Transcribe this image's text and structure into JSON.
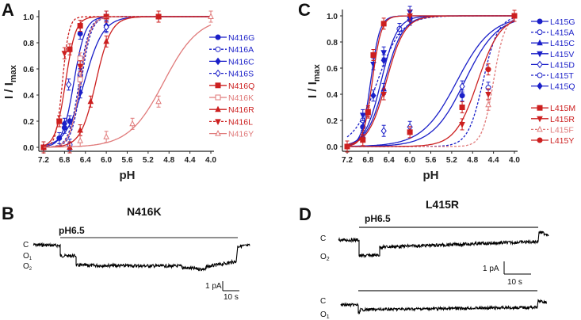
{
  "chart_data": [
    {
      "panel": "A",
      "type": "scatter",
      "xlabel": "pH",
      "ylabel": "I / I_max",
      "ylabel_main": "I / I",
      "ylabel_sub": "max",
      "xlim": [
        7.2,
        4.0
      ],
      "ylim": [
        0.0,
        1.0
      ],
      "xticks": [
        "7.2",
        "6.8",
        "6.4",
        "6.0",
        "5.6",
        "5.2",
        "4.8",
        "4.4",
        "4.0"
      ],
      "yticks": [
        "0.0",
        "0.2",
        "0.4",
        "0.6",
        "0.8",
        "1.0"
      ],
      "legend_position": "right",
      "series": [
        {
          "name": "N416G",
          "color": "#1a1fc8",
          "dash": false,
          "marker": "circle",
          "filled": true,
          "pH50": 6.62,
          "n": 4.0,
          "points": [
            [
              7.2,
              0.0
            ],
            [
              6.9,
              0.07
            ],
            [
              6.8,
              0.15
            ],
            [
              6.7,
              0.2
            ],
            [
              6.5,
              0.87
            ],
            [
              6.0,
              1.0
            ]
          ]
        },
        {
          "name": "N416A",
          "color": "#1a1fc8",
          "dash": true,
          "marker": "circle",
          "filled": false,
          "pH50": 6.52,
          "n": 4.5,
          "points": [
            [
              7.2,
              0.0
            ],
            [
              6.7,
              0.02
            ],
            [
              6.5,
              0.55
            ],
            [
              6.0,
              1.0
            ]
          ]
        },
        {
          "name": "N416C",
          "color": "#1a1fc8",
          "dash": false,
          "marker": "diamond",
          "filled": true,
          "pH50": 6.42,
          "n": 2.4,
          "points": [
            [
              7.2,
              0.0
            ],
            [
              6.8,
              0.18
            ],
            [
              6.7,
              0.2
            ],
            [
              6.5,
              0.42
            ],
            [
              6.0,
              0.93
            ]
          ]
        },
        {
          "name": "N416S",
          "color": "#1a1fc8",
          "dash": true,
          "marker": "diamond",
          "filled": false,
          "pH50": 6.48,
          "n": 4.5,
          "points": [
            [
              7.2,
              0.0
            ],
            [
              6.72,
              0.48
            ],
            [
              6.5,
              0.56
            ],
            [
              6.0,
              0.92
            ]
          ]
        },
        {
          "name": "N416Q",
          "color": "#cc1f1f",
          "dash": false,
          "marker": "square",
          "filled": true,
          "pH50": 6.78,
          "n": 4.5,
          "points": [
            [
              7.2,
              0.0
            ],
            [
              6.9,
              0.2
            ],
            [
              6.7,
              0.75
            ],
            [
              6.5,
              0.93
            ],
            [
              6.0,
              1.0
            ],
            [
              5.0,
              1.0
            ]
          ]
        },
        {
          "name": "N416K",
          "color": "#e07a7a",
          "dash": false,
          "marker": "square",
          "filled": false,
          "pH50": 6.5,
          "n": 4.5,
          "points": [
            [
              6.5,
              0.68
            ],
            [
              6.5,
              0.52
            ]
          ]
        },
        {
          "name": "N416R",
          "color": "#cc1f1f",
          "dash": false,
          "marker": "triangle-up",
          "filled": true,
          "pH50": 6.2,
          "n": 3.0,
          "points": [
            [
              7.2,
              0.0
            ],
            [
              6.7,
              0.0
            ],
            [
              6.5,
              0.13
            ],
            [
              6.3,
              0.35
            ],
            [
              6.0,
              0.81
            ],
            [
              5.0,
              1.0
            ]
          ]
        },
        {
          "name": "N416L",
          "color": "#cc1f1f",
          "dash": true,
          "marker": "triangle-down",
          "filled": true,
          "pH50": 6.84,
          "n": 7.0,
          "points": [
            [
              7.2,
              0.0
            ],
            [
              6.9,
              0.2
            ],
            [
              6.8,
              0.72
            ],
            [
              6.5,
              0.62
            ]
          ]
        },
        {
          "name": "N416Y",
          "color": "#e07a7a",
          "dash": false,
          "marker": "triangle-up",
          "filled": false,
          "pH50": 4.9,
          "n": 1.3,
          "points": [
            [
              6.5,
              0.05
            ],
            [
              6.0,
              0.08
            ],
            [
              5.5,
              0.18
            ],
            [
              5.0,
              0.35
            ],
            [
              4.0,
              1.0
            ]
          ]
        }
      ]
    },
    {
      "panel": "C",
      "type": "scatter",
      "xlabel": "pH",
      "ylabel": "I / I_max",
      "ylabel_main": "I / I",
      "ylabel_sub": "max",
      "xlim": [
        7.2,
        4.0
      ],
      "ylim": [
        0.0,
        1.0
      ],
      "xticks": [
        "7.2",
        "6.8",
        "6.4",
        "6.0",
        "5.6",
        "5.2",
        "4.8",
        "4.4",
        "4.0"
      ],
      "yticks": [
        "0.0",
        "0.2",
        "0.4",
        "0.6",
        "0.8",
        "1.0"
      ],
      "legend_position": "right",
      "series": [
        {
          "name": "L415G",
          "color": "#1a1fc8",
          "dash": false,
          "marker": "circle",
          "filled": true,
          "pH50": 4.95,
          "n": 1.4,
          "points": [
            [
              7.2,
              0.0
            ],
            [
              6.9,
              0.15
            ],
            [
              5.0,
              0.39
            ],
            [
              4.0,
              1.0
            ]
          ]
        },
        {
          "name": "L415A",
          "color": "#1a1fc8",
          "dash": true,
          "marker": "circle",
          "filled": false,
          "pH50": 6.62,
          "n": 1.9,
          "points": [
            [
              6.9,
              0.2
            ],
            [
              6.2,
              0.9
            ]
          ]
        },
        {
          "name": "L415C",
          "color": "#1a1fc8",
          "dash": false,
          "marker": "triangle-up",
          "filled": true,
          "pH50": 6.48,
          "n": 2.5,
          "points": [
            [
              6.9,
              0.08
            ],
            [
              6.5,
              0.44
            ],
            [
              6.0,
              1.0
            ]
          ]
        },
        {
          "name": "L415V",
          "color": "#1a1fc8",
          "dash": false,
          "marker": "triangle-down",
          "filled": true,
          "pH50": 6.75,
          "n": 5.0,
          "points": [
            [
              6.9,
              0.24
            ],
            [
              6.7,
              0.63
            ],
            [
              6.5,
              0.72
            ],
            [
              6.0,
              1.03
            ]
          ]
        },
        {
          "name": "L415D",
          "color": "#1a1fc8",
          "dash": false,
          "marker": "diamond",
          "filled": false,
          "pH50": 5.1,
          "n": 1.3,
          "points": [
            [
              6.5,
              0.12
            ],
            [
              6.0,
              0.15
            ],
            [
              5.0,
              0.46
            ]
          ]
        },
        {
          "name": "L415T",
          "color": "#1a1fc8",
          "dash": true,
          "marker": "circle",
          "filled": false,
          "pH50": 4.6,
          "n": 3.0,
          "points": [
            [
              4.5,
              0.45
            ]
          ]
        },
        {
          "name": "L415Q",
          "color": "#1a1fc8",
          "dash": false,
          "marker": "diamond",
          "filled": true,
          "pH50": 6.55,
          "n": 2.8,
          "points": [
            [
              6.7,
              0.39
            ],
            [
              6.5,
              0.66
            ],
            [
              6.0,
              0.97
            ]
          ]
        },
        {
          "name": "L415M",
          "color": "#cc1f1f",
          "dash": false,
          "marker": "square",
          "filled": true,
          "pH50": 6.45,
          "n": 2.5,
          "points": [
            [
              7.2,
              0.0
            ],
            [
              6.9,
              0.05
            ],
            [
              6.8,
              0.26
            ],
            [
              6.7,
              0.7
            ],
            [
              6.5,
              0.94
            ],
            [
              6.0,
              0.11
            ],
            [
              5.0,
              0.3
            ],
            [
              4.0,
              1.0
            ]
          ],
          "note": "two fitted curves shown in red"
        },
        {
          "name": "L415R",
          "color": "#cc1f1f",
          "dash": false,
          "marker": "triangle-down",
          "filled": true,
          "pH50": 6.72,
          "n": 5.0,
          "points": [
            [
              6.8,
              0.27
            ],
            [
              6.5,
              0.4
            ],
            [
              6.0,
              1.0
            ],
            [
              5.0,
              0.17
            ],
            [
              4.5,
              0.4
            ]
          ]
        },
        {
          "name": "L415F",
          "color": "#e07a7a",
          "dash": true,
          "marker": "triangle-up",
          "filled": false,
          "pH50": 4.4,
          "n": 4.0,
          "points": [
            [
              4.5,
              0.32
            ]
          ]
        },
        {
          "name": "L415Y",
          "color": "#cc1f1f",
          "dash": false,
          "marker": "circle",
          "filled": true,
          "pH50": 4.7,
          "n": 2.0,
          "points": [
            [
              4.5,
              0.59
            ],
            [
              4.0,
              1.0
            ]
          ]
        }
      ]
    }
  ],
  "panels": {
    "A": {
      "letter": "A"
    },
    "B": {
      "letter": "B",
      "title": "N416K",
      "condition": "pH6.5",
      "states": [
        "C",
        "O",
        "O"
      ],
      "state_subs": [
        "",
        "1",
        "2"
      ],
      "scale_y": "1 pA",
      "scale_x": "10 s"
    },
    "C": {
      "letter": "C"
    },
    "D": {
      "letter": "D",
      "title": "L415R",
      "condition": "pH6.5",
      "trace1_states": [
        "C",
        "O"
      ],
      "trace1_subs": [
        "",
        "2"
      ],
      "trace2_states": [
        "C",
        "O"
      ],
      "trace2_subs": [
        "",
        "1"
      ],
      "scale_y": "1 pA",
      "scale_x": "10 s"
    }
  }
}
